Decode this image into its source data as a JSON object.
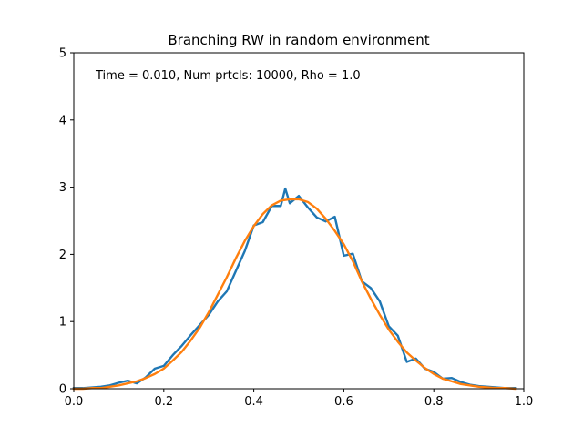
{
  "chart_data": {
    "type": "line",
    "title": "Branching RW in random environment",
    "annotation": "Time = 0.010, Num prtcls: 10000, Rho = 1.0",
    "xlabel": "",
    "ylabel": "",
    "xlim": [
      0.0,
      1.0
    ],
    "ylim": [
      0,
      5
    ],
    "x_ticks": [
      0.0,
      0.2,
      0.4,
      0.6,
      0.8,
      1.0
    ],
    "x_tick_labels": [
      "0.0",
      "0.2",
      "0.4",
      "0.6",
      "0.8",
      "1.0"
    ],
    "y_ticks": [
      0,
      1,
      2,
      3,
      4,
      5
    ],
    "y_tick_labels": [
      "0",
      "1",
      "2",
      "3",
      "4",
      "5"
    ],
    "grid": false,
    "legend": "none",
    "series": [
      {
        "color": "#1f77b4",
        "x": [
          0.0,
          0.02,
          0.04,
          0.06,
          0.08,
          0.1,
          0.12,
          0.14,
          0.16,
          0.18,
          0.2,
          0.22,
          0.24,
          0.26,
          0.28,
          0.3,
          0.32,
          0.34,
          0.36,
          0.38,
          0.4,
          0.42,
          0.44,
          0.46,
          0.47,
          0.48,
          0.5,
          0.52,
          0.54,
          0.56,
          0.58,
          0.6,
          0.62,
          0.64,
          0.66,
          0.68,
          0.7,
          0.72,
          0.74,
          0.76,
          0.78,
          0.8,
          0.82,
          0.84,
          0.86,
          0.88,
          0.9,
          0.92,
          0.94,
          0.96,
          0.98
        ],
        "values": [
          0.01,
          0.01,
          0.02,
          0.03,
          0.05,
          0.09,
          0.12,
          0.08,
          0.17,
          0.3,
          0.34,
          0.5,
          0.64,
          0.8,
          0.95,
          1.1,
          1.3,
          1.45,
          1.75,
          2.05,
          2.43,
          2.48,
          2.72,
          2.72,
          2.98,
          2.76,
          2.87,
          2.7,
          2.55,
          2.49,
          2.56,
          1.98,
          2.01,
          1.6,
          1.5,
          1.3,
          0.93,
          0.79,
          0.4,
          0.45,
          0.3,
          0.25,
          0.15,
          0.16,
          0.1,
          0.06,
          0.04,
          0.03,
          0.02,
          0.01,
          0.01
        ]
      },
      {
        "color": "#ff7f0e",
        "x": [
          0.0,
          0.02,
          0.04,
          0.06,
          0.08,
          0.1,
          0.12,
          0.14,
          0.16,
          0.18,
          0.2,
          0.22,
          0.24,
          0.26,
          0.28,
          0.3,
          0.32,
          0.34,
          0.36,
          0.38,
          0.4,
          0.42,
          0.44,
          0.46,
          0.48,
          0.5,
          0.52,
          0.54,
          0.56,
          0.58,
          0.6,
          0.62,
          0.64,
          0.66,
          0.68,
          0.7,
          0.72,
          0.74,
          0.76,
          0.78,
          0.8,
          0.82,
          0.84,
          0.86,
          0.88,
          0.9,
          0.92,
          0.94,
          0.96,
          0.98
        ],
        "values": [
          0.0,
          0.0,
          0.01,
          0.01,
          0.03,
          0.05,
          0.08,
          0.11,
          0.16,
          0.22,
          0.3,
          0.42,
          0.55,
          0.72,
          0.91,
          1.14,
          1.4,
          1.66,
          1.94,
          2.2,
          2.42,
          2.6,
          2.73,
          2.8,
          2.82,
          2.82,
          2.78,
          2.68,
          2.53,
          2.35,
          2.15,
          1.9,
          1.6,
          1.34,
          1.1,
          0.88,
          0.7,
          0.54,
          0.42,
          0.31,
          0.22,
          0.15,
          0.11,
          0.07,
          0.05,
          0.03,
          0.02,
          0.01,
          0.01,
          0.0
        ]
      }
    ]
  }
}
